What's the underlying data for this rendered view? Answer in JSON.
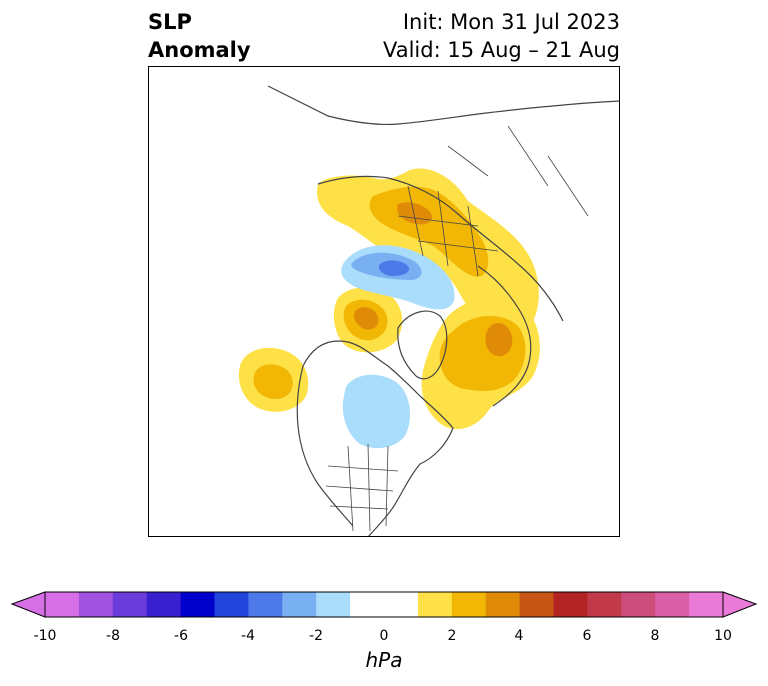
{
  "title": {
    "left_line1": "SLP",
    "left_line2": "Anomaly",
    "right_line1": "Init: Mon 31 Jul 2023",
    "right_line2": "Valid: 15 Aug – 21 Aug"
  },
  "colorbar": {
    "unit": "hPa",
    "ticks": [
      "-10",
      "-8",
      "-6",
      "-4",
      "-2",
      "0",
      "2",
      "4",
      "6",
      "8",
      "10"
    ],
    "colors": [
      "#d770e6",
      "#a052e0",
      "#6a3ddb",
      "#3a1fd1",
      "#0000cc",
      "#2244dd",
      "#4d78e8",
      "#78b0f2",
      "#aadcfb",
      "#ffffff",
      "#ffffff",
      "#fee146",
      "#f2b705",
      "#e08b08",
      "#c75614",
      "#b32424",
      "#c23a4a",
      "#cc4c7a",
      "#d960a6",
      "#e97ad8"
    ],
    "extend_low_color": "#d770e6",
    "extend_high_color": "#e97ad8"
  },
  "map": {
    "projection": "polar-stereographic",
    "land_outline_color": "#444444",
    "anomaly_colors": {
      "pos_1_2": "#fee146",
      "pos_2_3": "#f2b705",
      "pos_3_4": "#e08b08",
      "neg_1_2": "#aadcfb",
      "neg_2_3": "#78b0f2",
      "neg_3_4": "#4d78e8"
    }
  }
}
